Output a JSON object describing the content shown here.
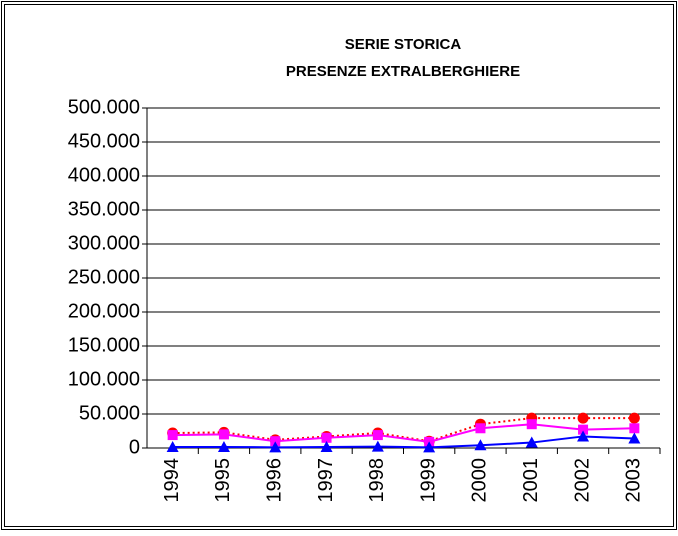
{
  "chart_data": {
    "type": "line",
    "title_lines": [
      "SERIE STORICA",
      "PRESENZE EXTRALBERGHIERE"
    ],
    "categories": [
      "1994",
      "1995",
      "1996",
      "1997",
      "1998",
      "1999",
      "2000",
      "2001",
      "2002",
      "2003"
    ],
    "series": [
      {
        "color": "#ff0000",
        "dash": "dotted",
        "marker": "circle",
        "values": [
          22000,
          23000,
          12000,
          17000,
          22000,
          10000,
          35000,
          44000,
          44000,
          44000
        ]
      },
      {
        "color": "#ff00ff",
        "dash": "solid",
        "marker": "square",
        "values": [
          19000,
          20000,
          10000,
          15000,
          19000,
          9000,
          29000,
          35000,
          27000,
          29000
        ]
      },
      {
        "color": "#0000ff",
        "dash": "solid",
        "marker": "triangle",
        "values": [
          1500,
          1500,
          1000,
          1500,
          2000,
          1000,
          4000,
          8000,
          17000,
          14000
        ]
      }
    ],
    "ylim": [
      0,
      500000
    ],
    "yticks": [
      0,
      {
        "value": 50000,
        "label": "50.000"
      },
      {
        "value": 100000,
        "label": "100.000"
      },
      {
        "value": 150000,
        "label": "150.000"
      },
      {
        "value": 200000,
        "label": "200.000"
      },
      {
        "value": 250000,
        "label": "250.000"
      },
      {
        "value": 300000,
        "label": "300.000"
      },
      {
        "value": 350000,
        "label": "350.000"
      },
      {
        "value": 400000,
        "label": "400.000"
      },
      {
        "value": 450000,
        "label": "450.000"
      },
      {
        "value": 500000,
        "label": "500.000"
      }
    ],
    "grid": true
  }
}
